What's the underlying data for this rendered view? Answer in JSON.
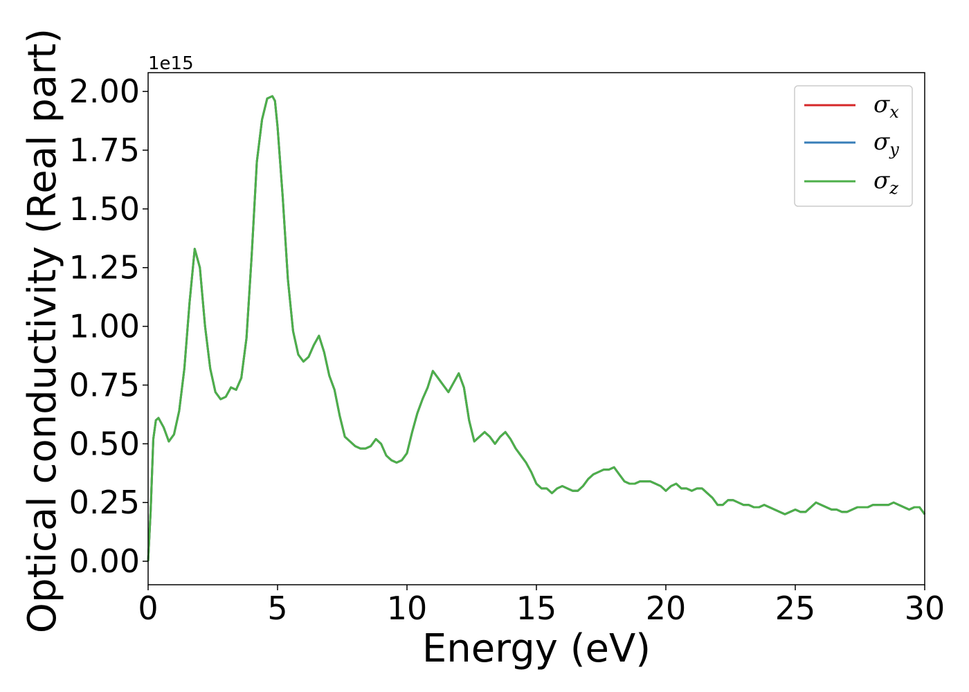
{
  "chart_data": {
    "type": "line",
    "xlabel": "Energy (eV)",
    "ylabel": "Optical conductivity (Real part)",
    "y_offset_label": "1e15",
    "y_scale": 1000000000000000.0,
    "xlim": [
      0,
      30
    ],
    "ylim": [
      -0.1,
      2.08
    ],
    "x_ticks": [
      0,
      5,
      10,
      15,
      20,
      25,
      30
    ],
    "x_tick_labels": [
      "0",
      "5",
      "10",
      "15",
      "20",
      "25",
      "30"
    ],
    "y_ticks": [
      0.0,
      0.25,
      0.5,
      0.75,
      1.0,
      1.25,
      1.5,
      1.75,
      2.0
    ],
    "y_tick_labels": [
      "0.00",
      "0.25",
      "0.50",
      "0.75",
      "1.00",
      "1.25",
      "1.50",
      "1.75",
      "2.00"
    ],
    "grid": false,
    "legend_position": "top-right",
    "x": [
      0,
      0.1,
      0.2,
      0.3,
      0.4,
      0.6,
      0.8,
      1.0,
      1.2,
      1.4,
      1.6,
      1.8,
      2.0,
      2.2,
      2.4,
      2.6,
      2.8,
      3.0,
      3.2,
      3.4,
      3.6,
      3.8,
      4.0,
      4.2,
      4.4,
      4.6,
      4.8,
      4.9,
      5.0,
      5.2,
      5.4,
      5.6,
      5.8,
      6.0,
      6.2,
      6.4,
      6.6,
      6.8,
      7.0,
      7.2,
      7.4,
      7.6,
      7.8,
      8.0,
      8.2,
      8.4,
      8.6,
      8.8,
      9.0,
      9.2,
      9.4,
      9.6,
      9.8,
      10.0,
      10.2,
      10.4,
      10.6,
      10.8,
      11.0,
      11.2,
      11.4,
      11.6,
      11.8,
      12.0,
      12.2,
      12.4,
      12.6,
      12.8,
      13.0,
      13.2,
      13.4,
      13.6,
      13.8,
      14.0,
      14.2,
      14.4,
      14.6,
      14.8,
      15.0,
      15.2,
      15.4,
      15.6,
      15.8,
      16.0,
      16.2,
      16.4,
      16.6,
      16.8,
      17.0,
      17.2,
      17.4,
      17.6,
      17.8,
      18.0,
      18.2,
      18.4,
      18.6,
      18.8,
      19.0,
      19.2,
      19.4,
      19.6,
      19.8,
      20.0,
      20.2,
      20.4,
      20.6,
      20.8,
      21.0,
      21.2,
      21.4,
      21.6,
      21.8,
      22.0,
      22.2,
      22.4,
      22.6,
      22.8,
      23.0,
      23.2,
      23.4,
      23.6,
      23.8,
      24.0,
      24.2,
      24.4,
      24.6,
      24.8,
      25.0,
      25.2,
      25.4,
      25.6,
      25.8,
      26.0,
      26.2,
      26.4,
      26.6,
      26.8,
      27.0,
      27.2,
      27.4,
      27.6,
      27.8,
      28.0,
      28.2,
      28.4,
      28.6,
      28.8,
      29.0,
      29.2,
      29.4,
      29.6,
      29.8,
      30.0
    ],
    "series": [
      {
        "name": "σ_x",
        "color": "#d62728",
        "values": [
          0.0,
          0.22,
          0.52,
          0.6,
          0.61,
          0.57,
          0.51,
          0.54,
          0.64,
          0.82,
          1.1,
          1.33,
          1.25,
          1.0,
          0.82,
          0.72,
          0.69,
          0.7,
          0.74,
          0.73,
          0.78,
          0.95,
          1.3,
          1.7,
          1.88,
          1.97,
          1.98,
          1.96,
          1.85,
          1.55,
          1.2,
          0.98,
          0.88,
          0.85,
          0.87,
          0.92,
          0.96,
          0.89,
          0.79,
          0.73,
          0.62,
          0.53,
          0.51,
          0.49,
          0.48,
          0.48,
          0.49,
          0.52,
          0.5,
          0.45,
          0.43,
          0.42,
          0.43,
          0.46,
          0.55,
          0.63,
          0.69,
          0.74,
          0.81,
          0.78,
          0.75,
          0.72,
          0.76,
          0.8,
          0.74,
          0.6,
          0.51,
          0.53,
          0.55,
          0.53,
          0.5,
          0.53,
          0.55,
          0.52,
          0.48,
          0.45,
          0.42,
          0.38,
          0.33,
          0.31,
          0.31,
          0.29,
          0.31,
          0.32,
          0.31,
          0.3,
          0.3,
          0.32,
          0.35,
          0.37,
          0.38,
          0.39,
          0.39,
          0.4,
          0.37,
          0.34,
          0.33,
          0.33,
          0.34,
          0.34,
          0.34,
          0.33,
          0.32,
          0.3,
          0.32,
          0.33,
          0.31,
          0.31,
          0.3,
          0.31,
          0.31,
          0.29,
          0.27,
          0.24,
          0.24,
          0.26,
          0.26,
          0.25,
          0.24,
          0.24,
          0.23,
          0.23,
          0.24,
          0.23,
          0.22,
          0.21,
          0.2,
          0.21,
          0.22,
          0.21,
          0.21,
          0.23,
          0.25,
          0.24,
          0.23,
          0.22,
          0.22,
          0.21,
          0.21,
          0.22,
          0.23,
          0.23,
          0.23,
          0.24,
          0.24,
          0.24,
          0.24,
          0.25,
          0.24,
          0.23,
          0.22,
          0.23,
          0.23,
          0.2
        ]
      },
      {
        "name": "σ_y",
        "color": "#377eb8",
        "values": [
          0.0,
          0.22,
          0.52,
          0.6,
          0.61,
          0.57,
          0.51,
          0.54,
          0.64,
          0.82,
          1.1,
          1.33,
          1.25,
          1.0,
          0.82,
          0.72,
          0.69,
          0.7,
          0.74,
          0.73,
          0.78,
          0.95,
          1.3,
          1.7,
          1.88,
          1.97,
          1.98,
          1.96,
          1.85,
          1.55,
          1.2,
          0.98,
          0.88,
          0.85,
          0.87,
          0.92,
          0.96,
          0.89,
          0.79,
          0.73,
          0.62,
          0.53,
          0.51,
          0.49,
          0.48,
          0.48,
          0.49,
          0.52,
          0.5,
          0.45,
          0.43,
          0.42,
          0.43,
          0.46,
          0.55,
          0.63,
          0.69,
          0.74,
          0.81,
          0.78,
          0.75,
          0.72,
          0.76,
          0.8,
          0.74,
          0.6,
          0.51,
          0.53,
          0.55,
          0.53,
          0.5,
          0.53,
          0.55,
          0.52,
          0.48,
          0.45,
          0.42,
          0.38,
          0.33,
          0.31,
          0.31,
          0.29,
          0.31,
          0.32,
          0.31,
          0.3,
          0.3,
          0.32,
          0.35,
          0.37,
          0.38,
          0.39,
          0.39,
          0.4,
          0.37,
          0.34,
          0.33,
          0.33,
          0.34,
          0.34,
          0.34,
          0.33,
          0.32,
          0.3,
          0.32,
          0.33,
          0.31,
          0.31,
          0.3,
          0.31,
          0.31,
          0.29,
          0.27,
          0.24,
          0.24,
          0.26,
          0.26,
          0.25,
          0.24,
          0.24,
          0.23,
          0.23,
          0.24,
          0.23,
          0.22,
          0.21,
          0.2,
          0.21,
          0.22,
          0.21,
          0.21,
          0.23,
          0.25,
          0.24,
          0.23,
          0.22,
          0.22,
          0.21,
          0.21,
          0.22,
          0.23,
          0.23,
          0.23,
          0.24,
          0.24,
          0.24,
          0.24,
          0.25,
          0.24,
          0.23,
          0.22,
          0.23,
          0.23,
          0.2
        ]
      },
      {
        "name": "σ_z",
        "color": "#4daf4a",
        "values": [
          0.0,
          0.22,
          0.52,
          0.6,
          0.61,
          0.57,
          0.51,
          0.54,
          0.64,
          0.82,
          1.1,
          1.33,
          1.25,
          1.0,
          0.82,
          0.72,
          0.69,
          0.7,
          0.74,
          0.73,
          0.78,
          0.95,
          1.3,
          1.7,
          1.88,
          1.97,
          1.98,
          1.96,
          1.85,
          1.55,
          1.2,
          0.98,
          0.88,
          0.85,
          0.87,
          0.92,
          0.96,
          0.89,
          0.79,
          0.73,
          0.62,
          0.53,
          0.51,
          0.49,
          0.48,
          0.48,
          0.49,
          0.52,
          0.5,
          0.45,
          0.43,
          0.42,
          0.43,
          0.46,
          0.55,
          0.63,
          0.69,
          0.74,
          0.81,
          0.78,
          0.75,
          0.72,
          0.76,
          0.8,
          0.74,
          0.6,
          0.51,
          0.53,
          0.55,
          0.53,
          0.5,
          0.53,
          0.55,
          0.52,
          0.48,
          0.45,
          0.42,
          0.38,
          0.33,
          0.31,
          0.31,
          0.29,
          0.31,
          0.32,
          0.31,
          0.3,
          0.3,
          0.32,
          0.35,
          0.37,
          0.38,
          0.39,
          0.39,
          0.4,
          0.37,
          0.34,
          0.33,
          0.33,
          0.34,
          0.34,
          0.34,
          0.33,
          0.32,
          0.3,
          0.32,
          0.33,
          0.31,
          0.31,
          0.3,
          0.31,
          0.31,
          0.29,
          0.27,
          0.24,
          0.24,
          0.26,
          0.26,
          0.25,
          0.24,
          0.24,
          0.23,
          0.23,
          0.24,
          0.23,
          0.22,
          0.21,
          0.2,
          0.21,
          0.22,
          0.21,
          0.21,
          0.23,
          0.25,
          0.24,
          0.23,
          0.22,
          0.22,
          0.21,
          0.21,
          0.22,
          0.23,
          0.23,
          0.23,
          0.24,
          0.24,
          0.24,
          0.24,
          0.25,
          0.24,
          0.23,
          0.22,
          0.23,
          0.23,
          0.2
        ]
      }
    ]
  },
  "legend": {
    "entries": [
      {
        "symbol": "σ",
        "subscript": "x",
        "color": "#d62728"
      },
      {
        "symbol": "σ",
        "subscript": "y",
        "color": "#377eb8"
      },
      {
        "symbol": "σ",
        "subscript": "z",
        "color": "#4daf4a"
      }
    ]
  }
}
